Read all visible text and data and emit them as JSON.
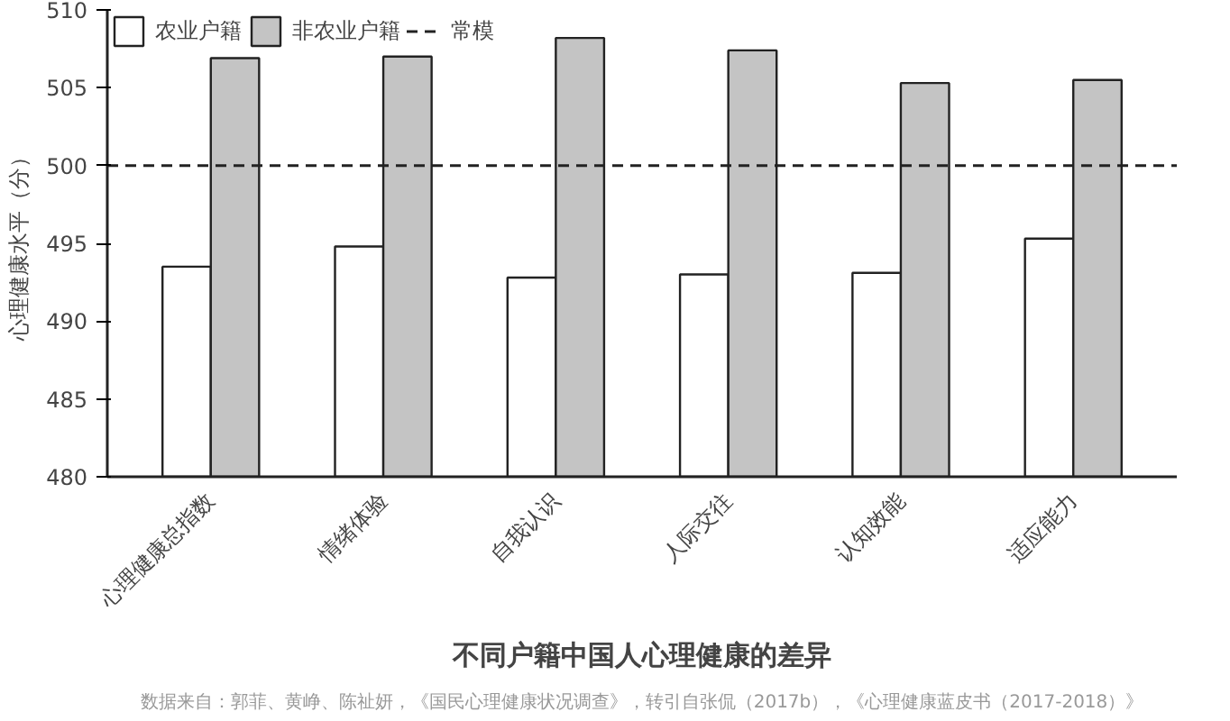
{
  "chart_data": {
    "type": "bar",
    "title": "不同户籍中国人心理健康的差异",
    "ylabel": "心理健康水平（分）",
    "categories": [
      "心理健康总指数",
      "情绪体验",
      "自我认识",
      "人际交往",
      "认知效能",
      "适应能力"
    ],
    "series": [
      {
        "name": "农业户籍",
        "color": "#ffffff",
        "values": [
          493.5,
          494.8,
          492.8,
          493.0,
          493.1,
          495.3
        ]
      },
      {
        "name": "非农业户籍",
        "color": "#c4c4c4",
        "values": [
          506.9,
          507.0,
          508.2,
          507.4,
          505.3,
          505.5
        ]
      }
    ],
    "ref_lines": [
      {
        "axis": "y",
        "value": 500,
        "label": "常模",
        "color": "#222222",
        "line_style": "dashed"
      }
    ],
    "ylim": [
      480,
      510
    ],
    "yticks": [
      480,
      485,
      490,
      495,
      500,
      505,
      510
    ],
    "grid": false,
    "legend": "top",
    "annotations": [
      "数据来自：郭菲、黄峥、陈祉妍，《国民心理健康状况调查》，转引自张侃（2017b），《心理健康蓝皮书（2017-2018）》"
    ]
  }
}
